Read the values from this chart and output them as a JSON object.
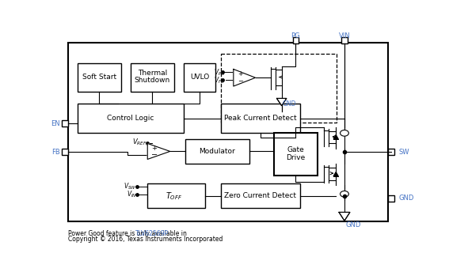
{
  "fig_width": 5.67,
  "fig_height": 3.44,
  "dpi": 100,
  "bg_color": "#ffffff",
  "lc": "#000000",
  "blue": "#4472c4",
  "footer1_pre": "Power Good feature is only available in ",
  "footer1_highlight": "TLV62569P",
  "footer2": "Copyright © 2016, Texas Instruments Incorporated"
}
